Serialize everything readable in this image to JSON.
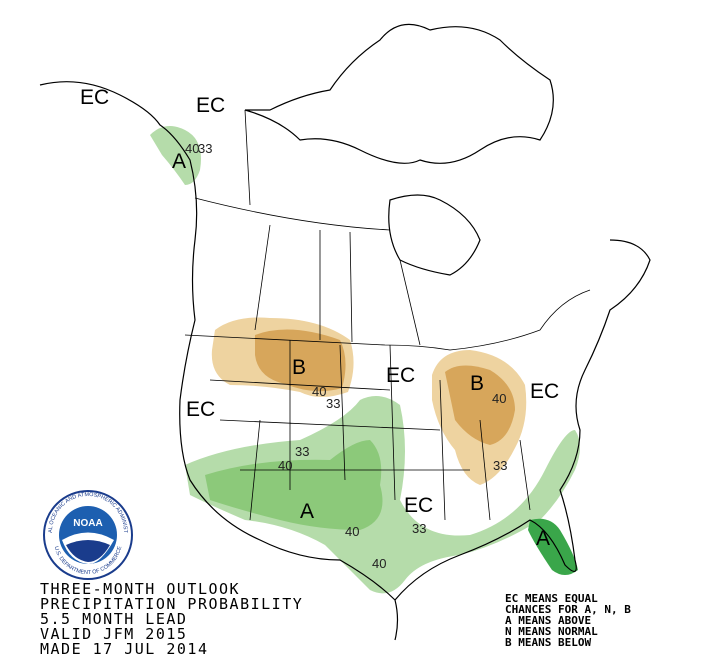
{
  "map": {
    "labels": [
      "EC",
      "EC",
      "A",
      "40",
      "33",
      "B",
      "40",
      "33",
      "EC",
      "EC",
      "B",
      "40",
      "EC",
      "33",
      "40",
      "A",
      "40",
      "EC",
      "33",
      "33",
      "40",
      "A"
    ]
  },
  "logo": {
    "name": "NOAA",
    "ring_top": "NATIONAL OCEANIC AND ATMOSPHERIC ADMINISTRATION",
    "ring_bottom": "U.S. DEPARTMENT OF COMMERCE"
  },
  "caption": {
    "lines": [
      "THREE-MONTH OUTLOOK",
      "PRECIPITATION PROBABILITY",
      "5.5 MONTH LEAD",
      "VALID JFM 2015",
      "MADE 17 JUL 2014"
    ]
  },
  "legend": {
    "lines": [
      "EC MEANS EQUAL",
      "CHANCES FOR A, N, B",
      "A MEANS ABOVE",
      "N MEANS NORMAL",
      "B MEANS BELOW"
    ]
  }
}
